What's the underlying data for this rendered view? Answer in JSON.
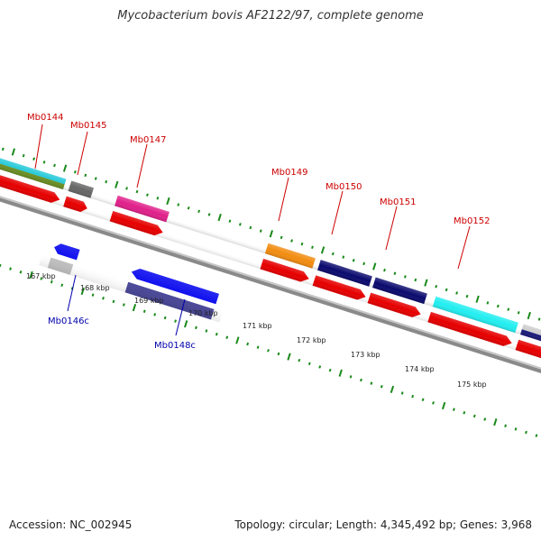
{
  "title": "Mycobacterium bovis AF2122/97, complete genome",
  "footer": {
    "accession": "Accession: NC_002945",
    "summary": "Topology: circular; Length: 4,345,492 bp; Genes: 3,968"
  },
  "colors": {
    "backbone": "#8a8a8a",
    "cds": "#e60000",
    "gc_ticks": "#1a8a1a",
    "fwd_label": "#cc0000",
    "rev_label": "#0000aa"
  },
  "ticks": [
    {
      "label": "167 kbp"
    },
    {
      "label": "168 kbp"
    },
    {
      "label": "169 kbp"
    },
    {
      "label": "170 kbp"
    },
    {
      "label": "171 kbp"
    },
    {
      "label": "172 kbp"
    },
    {
      "label": "173 kbp"
    },
    {
      "label": "174 kbp"
    },
    {
      "label": "175 kbp"
    }
  ],
  "gene_labels": [
    {
      "label": "Mb0144"
    },
    {
      "label": "Mb0145"
    },
    {
      "label": "Mb0146c"
    },
    {
      "label": "Mb0147"
    },
    {
      "label": "Mb0148c"
    },
    {
      "label": "Mb0149"
    },
    {
      "label": "Mb0150"
    },
    {
      "label": "Mb0151"
    },
    {
      "label": "Mb0152"
    }
  ]
}
